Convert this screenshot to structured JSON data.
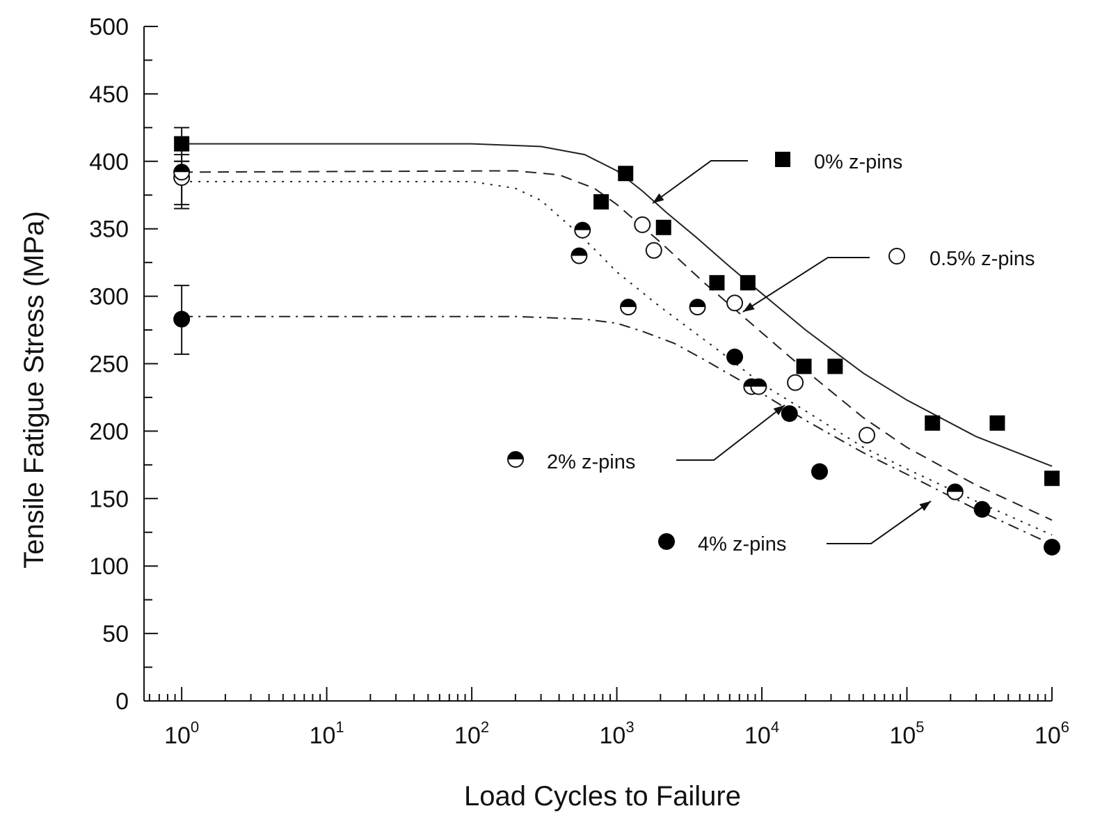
{
  "chart_data": {
    "type": "scatter",
    "title": "",
    "xlabel": "Load Cycles to Failure",
    "ylabel": "Tensile Fatigue Stress (MPa)",
    "xscale": "log",
    "xlim": [
      0.55,
      1000000
    ],
    "ylim": [
      0,
      500
    ],
    "x_ticks": [
      {
        "base": "10",
        "exp": "0",
        "value": 1
      },
      {
        "base": "10",
        "exp": "1",
        "value": 10
      },
      {
        "base": "10",
        "exp": "2",
        "value": 100
      },
      {
        "base": "10",
        "exp": "3",
        "value": 1000
      },
      {
        "base": "10",
        "exp": "4",
        "value": 10000
      },
      {
        "base": "10",
        "exp": "5",
        "value": 100000
      },
      {
        "base": "10",
        "exp": "6",
        "value": 1000000
      }
    ],
    "y_ticks": [
      "0",
      "50",
      "100",
      "150",
      "200",
      "250",
      "300",
      "350",
      "400",
      "450",
      "500"
    ],
    "grid": false,
    "series": [
      {
        "name": "0% z-pins",
        "marker": "square-filled",
        "line": "solid",
        "points": [
          {
            "x": 1,
            "y": 413
          },
          {
            "x": 780,
            "y": 370
          },
          {
            "x": 1150,
            "y": 391
          },
          {
            "x": 2100,
            "y": 351
          },
          {
            "x": 4900,
            "y": 310
          },
          {
            "x": 8000,
            "y": 310
          },
          {
            "x": 19500,
            "y": 248
          },
          {
            "x": 32000,
            "y": 248
          },
          {
            "x": 150000,
            "y": 206
          },
          {
            "x": 420000,
            "y": 206
          },
          {
            "x": 1000000,
            "y": 165
          }
        ],
        "error_bar": {
          "x": 1,
          "low": 400,
          "high": 425
        },
        "curve": [
          [
            1,
            413
          ],
          [
            100,
            413
          ],
          [
            300,
            411
          ],
          [
            600,
            405
          ],
          [
            1000,
            393
          ],
          [
            1500,
            378
          ],
          [
            2200,
            362
          ],
          [
            3500,
            344
          ],
          [
            6000,
            322
          ],
          [
            10000,
            302
          ],
          [
            20000,
            275
          ],
          [
            50000,
            243
          ],
          [
            100000,
            223
          ],
          [
            300000,
            196
          ],
          [
            1000000,
            174
          ]
        ]
      },
      {
        "name": "0.5% z-pins",
        "marker": "circle-open",
        "line": "dashed",
        "points": [
          {
            "x": 1,
            "y": 388
          },
          {
            "x": 1500,
            "y": 353
          },
          {
            "x": 1800,
            "y": 334
          },
          {
            "x": 6500,
            "y": 295
          },
          {
            "x": 17000,
            "y": 236
          },
          {
            "x": 53000,
            "y": 197
          }
        ],
        "error_bar": {
          "x": 1,
          "low": 368,
          "high": 405
        },
        "curve": [
          [
            1,
            392
          ],
          [
            200,
            393
          ],
          [
            400,
            390
          ],
          [
            700,
            380
          ],
          [
            1000,
            368
          ],
          [
            2000,
            340
          ],
          [
            4000,
            310
          ],
          [
            8000,
            282
          ],
          [
            20000,
            245
          ],
          [
            50000,
            210
          ],
          [
            100000,
            188
          ],
          [
            300000,
            160
          ],
          [
            1000000,
            134
          ]
        ]
      },
      {
        "name": "2% z-pins",
        "marker": "circle-half",
        "line": "dotted",
        "points": [
          {
            "x": 1,
            "y": 392
          },
          {
            "x": 550,
            "y": 330
          },
          {
            "x": 580,
            "y": 349
          },
          {
            "x": 1200,
            "y": 292
          },
          {
            "x": 3600,
            "y": 292
          },
          {
            "x": 8500,
            "y": 233
          },
          {
            "x": 9500,
            "y": 233
          },
          {
            "x": 215000,
            "y": 155
          }
        ],
        "error_bar": {
          "x": 1,
          "low": 365,
          "high": 400
        },
        "curve": [
          [
            1,
            385
          ],
          [
            100,
            385
          ],
          [
            200,
            380
          ],
          [
            300,
            371
          ],
          [
            500,
            350
          ],
          [
            700,
            335
          ],
          [
            1000,
            318
          ],
          [
            2000,
            292
          ],
          [
            5000,
            260
          ],
          [
            10000,
            235
          ],
          [
            20000,
            215
          ],
          [
            50000,
            188
          ],
          [
            100000,
            172
          ],
          [
            300000,
            148
          ],
          [
            1000000,
            123
          ]
        ]
      },
      {
        "name": "4% z-pins",
        "marker": "circle-filled",
        "line": "dashdot",
        "points": [
          {
            "x": 1,
            "y": 283
          },
          {
            "x": 6500,
            "y": 255
          },
          {
            "x": 15500,
            "y": 213
          },
          {
            "x": 25000,
            "y": 170
          },
          {
            "x": 330000,
            "y": 142
          },
          {
            "x": 1000000,
            "y": 114
          }
        ],
        "error_bar": {
          "x": 1,
          "low": 257,
          "high": 308
        },
        "curve": [
          [
            1,
            285
          ],
          [
            200,
            285
          ],
          [
            600,
            283
          ],
          [
            1000,
            280
          ],
          [
            1500,
            274
          ],
          [
            2500,
            265
          ],
          [
            4000,
            253
          ],
          [
            7000,
            238
          ],
          [
            10000,
            228
          ],
          [
            20000,
            208
          ],
          [
            50000,
            184
          ],
          [
            100000,
            168
          ],
          [
            300000,
            142
          ],
          [
            1000000,
            116
          ]
        ]
      }
    ],
    "legend": [
      {
        "label": "0% z-pins",
        "marker": "square-filled",
        "series": 0
      },
      {
        "label": "0.5% z-pins",
        "marker": "circle-open",
        "series": 1
      },
      {
        "label": "2% z-pins",
        "marker": "circle-half",
        "series": 2
      },
      {
        "label": "4% z-pins",
        "marker": "circle-filled",
        "series": 3
      }
    ]
  }
}
